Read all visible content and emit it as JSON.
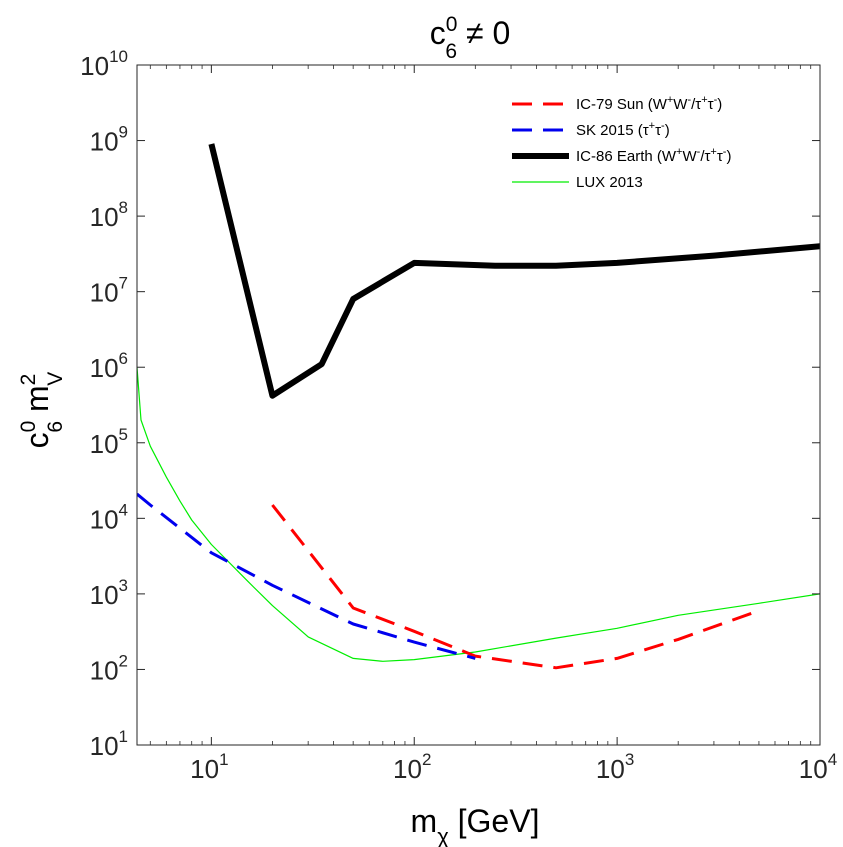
{
  "chart_data": {
    "type": "line",
    "title": {
      "base": "c",
      "sup": "0",
      "sub": "6",
      "rest": " ≠ 0"
    },
    "xlabel": {
      "base": "m",
      "sub": "χ",
      "rest": " [GeV]"
    },
    "ylabel": {
      "base": "c",
      "sup": "0",
      "sub": "6",
      "mid": " m",
      "sup2": "2",
      "sub2": "V"
    },
    "xscale": "log",
    "yscale": "log",
    "xlim": [
      4.3,
      10000
    ],
    "ylim": [
      10,
      10000000000
    ],
    "x_ticks": [
      {
        "base": "10",
        "exp": "1",
        "value": 10
      },
      {
        "base": "10",
        "exp": "2",
        "value": 100
      },
      {
        "base": "10",
        "exp": "3",
        "value": 1000
      },
      {
        "base": "10",
        "exp": "4",
        "value": 10000
      }
    ],
    "y_ticks": [
      {
        "base": "10",
        "exp": "1",
        "value": 10
      },
      {
        "base": "10",
        "exp": "2",
        "value": 100
      },
      {
        "base": "10",
        "exp": "3",
        "value": 1000
      },
      {
        "base": "10",
        "exp": "4",
        "value": 10000
      },
      {
        "base": "10",
        "exp": "5",
        "value": 100000
      },
      {
        "base": "10",
        "exp": "6",
        "value": 1000000
      },
      {
        "base": "10",
        "exp": "7",
        "value": 10000000
      },
      {
        "base": "10",
        "exp": "8",
        "value": 100000000
      },
      {
        "base": "10",
        "exp": "9",
        "value": 1000000000
      },
      {
        "base": "10",
        "exp": "10",
        "value": 10000000000
      }
    ],
    "grid": false,
    "legend_position": "top-right",
    "series": [
      {
        "name": "IC-79 Sun (W⁺W⁻/τ⁺τ⁻)",
        "legend": {
          "text": "IC-79 Sun (W",
          "parts": [
            [
              "+",
              "sup"
            ],
            [
              "W",
              "n"
            ],
            [
              "-",
              "sup"
            ],
            [
              "/τ",
              "n"
            ],
            [
              "+",
              "sup"
            ],
            [
              "τ",
              "n"
            ],
            [
              "-",
              "sup"
            ],
            [
              ")",
              "n"
            ]
          ]
        },
        "color": "#ff0000",
        "style": "dashed",
        "x": [
          20,
          50,
          100,
          200,
          500,
          1000,
          2000,
          5000
        ],
        "y": [
          15000,
          650,
          320,
          150,
          105,
          140,
          250,
          600
        ]
      },
      {
        "name": "SK 2015 (τ⁺τ⁻)",
        "legend": {
          "text": "SK 2015 (τ",
          "parts": [
            [
              "+",
              "sup"
            ],
            [
              "τ",
              "n"
            ],
            [
              "-",
              "sup"
            ],
            [
              ")",
              "n"
            ]
          ]
        },
        "color": "#0000ee",
        "style": "dashed",
        "x": [
          4.3,
          5,
          10,
          20,
          50,
          100,
          200
        ],
        "y": [
          21000,
          15000,
          3500,
          1300,
          400,
          230,
          140
        ]
      },
      {
        "name": "IC-86 Earth (W⁺W⁻/τ⁺τ⁻)",
        "legend": {
          "text": "IC-86 Earth (W",
          "parts": [
            [
              "+",
              "sup"
            ],
            [
              "W",
              "n"
            ],
            [
              "-",
              "sup"
            ],
            [
              "/τ",
              "n"
            ],
            [
              "+",
              "sup"
            ],
            [
              "τ",
              "n"
            ],
            [
              "-",
              "sup"
            ],
            [
              ")",
              "n"
            ]
          ]
        },
        "color": "#000000",
        "style": "solid-thick",
        "x": [
          10,
          20,
          35,
          50,
          100,
          250,
          500,
          1000,
          3000,
          10000
        ],
        "y": [
          900000000,
          420000,
          1100000,
          8000000,
          24000000,
          22000000,
          22000000,
          24000000,
          30000000,
          40000000
        ]
      },
      {
        "name": "LUX 2013",
        "legend": {
          "text": "LUX 2013",
          "parts": []
        },
        "color": "#00ee00",
        "style": "solid-thin",
        "x": [
          4.3,
          4.5,
          5,
          6,
          7,
          8,
          10,
          15,
          20,
          30,
          50,
          70,
          100,
          200,
          500,
          1000,
          2000,
          5000,
          10000
        ],
        "y": [
          1000000,
          200000,
          90000,
          35000,
          17000,
          9500,
          4500,
          1500,
          700,
          270,
          140,
          128,
          135,
          170,
          260,
          350,
          520,
          750,
          1000
        ]
      }
    ]
  }
}
